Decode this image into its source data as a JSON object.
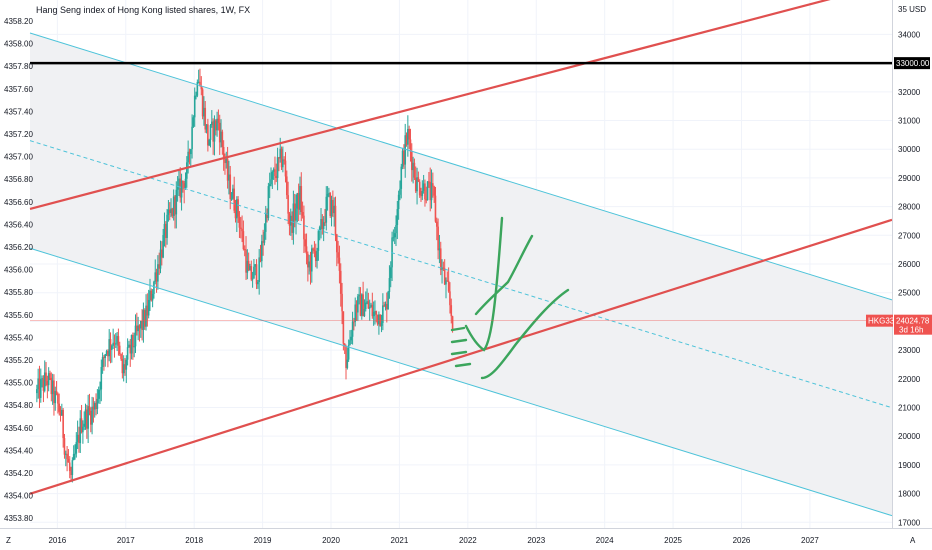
{
  "header": {
    "title": "Hang Seng index of Hong Kong listed shares, 1W, FX"
  },
  "scales": {
    "right": {
      "unit_label": "35 USD",
      "ticks": [
        34000,
        33000,
        32000,
        31000,
        30000,
        29000,
        28000,
        27000,
        26000,
        25000,
        24000,
        23000,
        22000,
        21000,
        20000,
        19000,
        18000,
        17000
      ]
    },
    "left": {
      "ticks": [
        "4358.20",
        "4358.00",
        "4357.80",
        "4357.60",
        "4357.40",
        "4357.20",
        "4357.00",
        "4356.80",
        "4356.60",
        "4356.40",
        "4356.20",
        "4356.00",
        "4355.80",
        "4355.60",
        "4355.40",
        "4355.20",
        "4355.00",
        "4354.80",
        "4354.60",
        "4354.40",
        "4354.20",
        "4354.00",
        "4353.80"
      ]
    },
    "bottom": {
      "ticks": [
        "2016",
        "2017",
        "2018",
        "2019",
        "2020",
        "2021",
        "2022",
        "2023",
        "2024",
        "2025",
        "2026",
        "2027"
      ],
      "left_button": "Z",
      "right_button": "A"
    }
  },
  "markers": {
    "horizontal_level": {
      "label": "33000.00",
      "value": 33000,
      "color": "#000000"
    },
    "price_tag": {
      "symbol": "HKG33",
      "value_label": "24024.78",
      "countdown": "3d 16h",
      "value": 24024.78,
      "color": "#ef5350"
    }
  },
  "chart_data": {
    "type": "candlestick",
    "title": "Hang Seng index of Hong Kong listed shares, 1W, FX",
    "xlabel": "",
    "ylabel": "",
    "x_range": [
      2015.6,
      2028.2
    ],
    "y_range": [
      16800,
      35200
    ],
    "grid": true,
    "close_anchors": [
      [
        2015.7,
        21500
      ],
      [
        2015.85,
        22000
      ],
      [
        2016.05,
        20800
      ],
      [
        2016.12,
        19500
      ],
      [
        2016.2,
        18500
      ],
      [
        2016.35,
        20500
      ],
      [
        2016.55,
        21000
      ],
      [
        2016.7,
        23000
      ],
      [
        2016.85,
        23500
      ],
      [
        2016.95,
        22200
      ],
      [
        2017.1,
        23200
      ],
      [
        2017.3,
        24200
      ],
      [
        2017.45,
        25800
      ],
      [
        2017.6,
        27300
      ],
      [
        2017.75,
        28400
      ],
      [
        2017.9,
        29200
      ],
      [
        2018.05,
        32800
      ],
      [
        2018.2,
        30300
      ],
      [
        2018.35,
        31000
      ],
      [
        2018.5,
        28800
      ],
      [
        2018.65,
        27700
      ],
      [
        2018.8,
        25500
      ],
      [
        2018.95,
        25800
      ],
      [
        2019.1,
        28700
      ],
      [
        2019.3,
        29800
      ],
      [
        2019.4,
        27300
      ],
      [
        2019.55,
        28400
      ],
      [
        2019.65,
        25800
      ],
      [
        2019.8,
        26600
      ],
      [
        2019.95,
        28200
      ],
      [
        2020.05,
        27800
      ],
      [
        2020.15,
        24500
      ],
      [
        2020.22,
        22600
      ],
      [
        2020.35,
        24500
      ],
      [
        2020.5,
        24600
      ],
      [
        2020.65,
        24200
      ],
      [
        2020.8,
        24400
      ],
      [
        2020.9,
        26800
      ],
      [
        2021.05,
        29700
      ],
      [
        2021.12,
        30500
      ],
      [
        2021.25,
        28800
      ],
      [
        2021.4,
        28600
      ],
      [
        2021.5,
        28300
      ],
      [
        2021.6,
        26000
      ],
      [
        2021.7,
        25000
      ],
      [
        2021.78,
        24024
      ]
    ],
    "trendlines": [
      {
        "name": "channel-upper",
        "color": "#4dc3d9",
        "from": [
          2015.6,
          34050
        ],
        "to": [
          2028.2,
          24750
        ]
      },
      {
        "name": "channel-middle",
        "color": "#4dc3d9",
        "dashed": true,
        "from": [
          2015.6,
          30300
        ],
        "to": [
          2028.2,
          20990
        ]
      },
      {
        "name": "channel-lower",
        "color": "#4dc3d9",
        "from": [
          2015.6,
          26550
        ],
        "to": [
          2028.2,
          17230
        ]
      },
      {
        "name": "support-line",
        "color": "#e0504f",
        "from": [
          2015.6,
          17990
        ],
        "to": [
          2028.2,
          27540
        ]
      },
      {
        "name": "resistance-line",
        "color": "#e0504f",
        "from": [
          2015.6,
          27920
        ],
        "to": [
          2028.2,
          35800
        ]
      }
    ],
    "annotations": [
      {
        "name": "green-brush-strokes",
        "color": "#3ba55c"
      }
    ]
  }
}
